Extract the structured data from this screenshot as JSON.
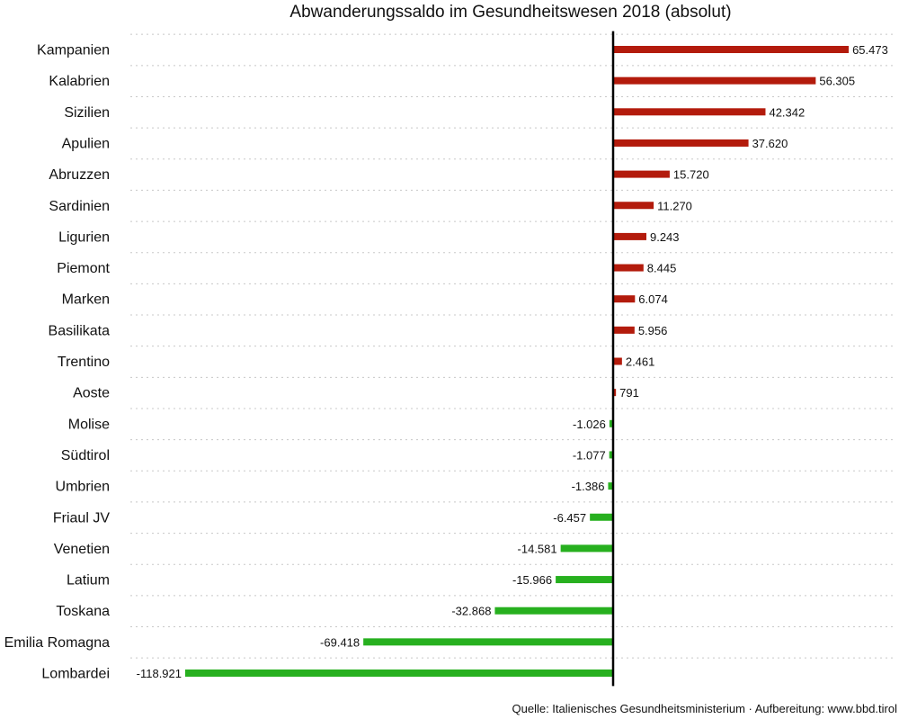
{
  "colors": {
    "positive": "#b31b0c",
    "negative": "#27b01f"
  },
  "chart_data": {
    "type": "bar",
    "orientation": "horizontal",
    "title": "Abwanderungssaldo im Gesundheitswesen 2018 (absolut)",
    "xlabel": "",
    "ylabel": "",
    "grid": true,
    "legend": "none",
    "xlim": [
      -122000,
      68000
    ],
    "categories": [
      "Kampanien",
      "Kalabrien",
      "Sizilien",
      "Apulien",
      "Abruzzen",
      "Sardinien",
      "Ligurien",
      "Piemont",
      "Marken",
      "Basilikata",
      "Trentino",
      "Aoste",
      "Molise",
      "Südtirol",
      "Umbrien",
      "Friaul JV",
      "Venetien",
      "Latium",
      "Toskana",
      "Emilia Romagna",
      "Lombardei"
    ],
    "values": [
      65473,
      56305,
      42342,
      37620,
      15720,
      11270,
      9243,
      8445,
      6074,
      5956,
      2461,
      791,
      -1026,
      -1077,
      -1386,
      -6457,
      -14581,
      -15966,
      -32868,
      -69418,
      -118921
    ],
    "value_labels": [
      "65.473",
      "56.305",
      "42.342",
      "37.620",
      "15.720",
      "11.270",
      "9.243",
      "8.445",
      "6.074",
      "5.956",
      "2.461",
      "791",
      "-1.026",
      "-1.077",
      "-1.386",
      "-6.457",
      "-14.581",
      "-15.966",
      "-32.868",
      "-69.418",
      "-118.921"
    ]
  },
  "source": "Quelle: Italienisches Gesundheitsministerium · Aufbereitung: www.bbd.tirol"
}
